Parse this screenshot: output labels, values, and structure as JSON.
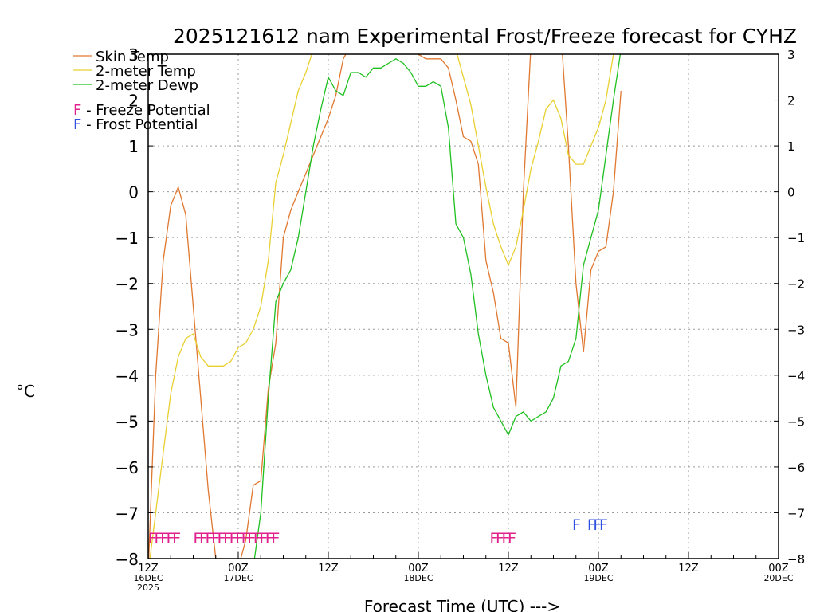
{
  "chart_data": {
    "type": "line",
    "title": "2025121612 nam Experimental Frost/Freeze forecast for CYHZ",
    "xlabel": "Forecast Time (UTC) --->",
    "ylabel": "°C",
    "ylim": [
      -8,
      3
    ],
    "xlim": [
      0,
      84
    ],
    "grid": true,
    "y_ticks": [
      -8,
      -7,
      -6,
      -5,
      -4,
      -3,
      -2,
      -1,
      0,
      1,
      2,
      3
    ],
    "y_tick_labels": [
      "−8",
      "−7",
      "−6",
      "−5",
      "−4",
      "−3",
      "−2",
      "−1",
      "0",
      "1",
      "2",
      "3"
    ],
    "x_ticks": [
      {
        "hour": 0,
        "lines": [
          "12Z",
          "16DEC",
          "2025"
        ]
      },
      {
        "hour": 12,
        "lines": [
          "00Z",
          "17DEC"
        ]
      },
      {
        "hour": 24,
        "lines": [
          "12Z"
        ]
      },
      {
        "hour": 36,
        "lines": [
          "00Z",
          "18DEC"
        ]
      },
      {
        "hour": 48,
        "lines": [
          "12Z"
        ]
      },
      {
        "hour": 60,
        "lines": [
          "00Z",
          "19DEC"
        ]
      },
      {
        "hour": 72,
        "lines": [
          "12Z"
        ]
      },
      {
        "hour": 84,
        "lines": [
          "00Z",
          "20DEC"
        ]
      }
    ],
    "legend": {
      "position": "top-left",
      "series": [
        {
          "label": "Skin Temp",
          "color": "#e07830"
        },
        {
          "label": "2-meter Temp",
          "color": "#e8d030"
        },
        {
          "label": "2-meter Dewp",
          "color": "#20c020"
        }
      ],
      "markers": [
        {
          "symbol": "F",
          "label": " - Freeze Potential",
          "color": "#e0208c"
        },
        {
          "symbol": "F",
          "label": " - Frost Potential",
          "color": "#3050e0"
        }
      ]
    },
    "series": [
      {
        "name": "Skin Temp",
        "color": "#e07830",
        "x": [
          0,
          1,
          2,
          3,
          4,
          5,
          6,
          7,
          8,
          9,
          10,
          11,
          12,
          13,
          14,
          15,
          16,
          17,
          18,
          19,
          20,
          21,
          22,
          23,
          24,
          25,
          26,
          27,
          28,
          29,
          30,
          31,
          32,
          33,
          34,
          35,
          36,
          37,
          38,
          39,
          40,
          41,
          42,
          43,
          44,
          45,
          46,
          47,
          48,
          49,
          50,
          51,
          52,
          53,
          54,
          55,
          56,
          57,
          58,
          59,
          60,
          61,
          62,
          63
        ],
        "y": [
          -8.3,
          -4.0,
          -1.5,
          -0.3,
          0.1,
          -0.5,
          -2.5,
          -4.5,
          -6.5,
          -8.0,
          -8.0,
          -8.1,
          -8.2,
          -7.6,
          -6.4,
          -6.3,
          -4.3,
          -3.3,
          -1.0,
          -0.4,
          0.0,
          0.4,
          0.8,
          1.2,
          1.6,
          2.1,
          2.9,
          3.2,
          3.3,
          3.4,
          3.4,
          3.4,
          3.4,
          3.4,
          3.4,
          3.3,
          3.0,
          2.9,
          2.9,
          2.9,
          2.7,
          2.0,
          1.2,
          1.1,
          0.6,
          -1.5,
          -2.2,
          -3.2,
          -3.3,
          -4.7,
          0.0,
          3.2,
          3.4,
          3.5,
          3.5,
          3.5,
          1.0,
          -2.0,
          -3.5,
          -1.7,
          -1.3,
          -1.2,
          0.0,
          2.2
        ]
      },
      {
        "name": "2-meter Temp",
        "color": "#e8d030",
        "x": [
          0,
          1,
          2,
          3,
          4,
          5,
          6,
          7,
          8,
          9,
          10,
          11,
          12,
          13,
          14,
          15,
          16,
          17,
          18,
          19,
          20,
          21,
          22,
          23,
          24,
          25,
          26,
          27,
          28,
          29,
          30,
          31,
          32,
          33,
          34,
          35,
          36,
          37,
          38,
          39,
          40,
          41,
          42,
          43,
          44,
          45,
          46,
          47,
          48,
          49,
          50,
          51,
          52,
          53,
          54,
          55,
          56,
          57,
          58,
          59,
          60,
          61,
          62,
          63
        ],
        "y": [
          -8.3,
          -7.0,
          -5.7,
          -4.4,
          -3.6,
          -3.2,
          -3.1,
          -3.6,
          -3.8,
          -3.8,
          -3.8,
          -3.7,
          -3.4,
          -3.3,
          -3.0,
          -2.5,
          -1.5,
          0.2,
          0.8,
          1.5,
          2.2,
          2.6,
          3.1,
          3.2,
          3.3,
          3.4,
          3.4,
          3.4,
          3.4,
          3.4,
          3.4,
          3.4,
          3.4,
          3.4,
          3.4,
          3.4,
          3.4,
          3.4,
          3.4,
          3.3,
          3.2,
          3.1,
          2.5,
          1.9,
          1.0,
          0.1,
          -0.7,
          -1.2,
          -1.6,
          -1.2,
          -0.4,
          0.5,
          1.1,
          1.8,
          2.0,
          1.6,
          0.8,
          0.6,
          0.6,
          1.0,
          1.4,
          2.0,
          3.0,
          3.3
        ]
      },
      {
        "name": "2-meter Dewp",
        "color": "#20c020",
        "x": [
          0,
          1,
          2,
          3,
          4,
          5,
          6,
          7,
          8,
          9,
          10,
          11,
          12,
          13,
          14,
          15,
          16,
          17,
          18,
          19,
          20,
          21,
          22,
          23,
          24,
          25,
          26,
          27,
          28,
          29,
          30,
          31,
          32,
          33,
          34,
          35,
          36,
          37,
          38,
          39,
          40,
          41,
          42,
          43,
          44,
          45,
          46,
          47,
          48,
          49,
          50,
          51,
          52,
          53,
          54,
          55,
          56,
          57,
          58,
          59,
          60,
          61,
          62,
          63
        ],
        "y": [
          -8.5,
          -8.5,
          -8.5,
          -8.5,
          -8.5,
          -8.5,
          -8.5,
          -8.5,
          -8.5,
          -8.5,
          -8.5,
          -8.5,
          -8.5,
          -8.5,
          -8.2,
          -7.0,
          -4.5,
          -2.4,
          -2.0,
          -1.7,
          -1.0,
          0.0,
          1.0,
          1.8,
          2.5,
          2.2,
          2.1,
          2.6,
          2.6,
          2.5,
          2.7,
          2.7,
          2.8,
          2.9,
          2.8,
          2.6,
          2.3,
          2.3,
          2.4,
          2.3,
          1.4,
          -0.7,
          -1.0,
          -1.8,
          -3.1,
          -4.0,
          -4.7,
          -5.0,
          -5.3,
          -4.9,
          -4.8,
          -5.0,
          -4.9,
          -4.8,
          -4.5,
          -3.8,
          -3.7,
          -3.2,
          -1.6,
          -1.0,
          -0.4,
          0.8,
          2.0,
          3.1
        ]
      }
    ],
    "markers": [
      {
        "symbol": "F",
        "kind": "freeze",
        "color": "#e0208c",
        "value": -7.5,
        "hours": [
          0,
          0.8,
          1.6,
          2.4,
          3.2,
          6,
          6.8,
          7.6,
          8.4,
          9.2,
          10,
          10.8,
          11.6,
          12.4,
          13.2,
          14,
          14.8,
          15.6,
          16.4,
          45.5,
          46.3,
          47.1,
          47.9
        ]
      },
      {
        "symbol": "F",
        "kind": "frost",
        "color": "#3050e0",
        "value": -7.2,
        "hours": [
          56.5,
          58.5,
          59.3,
          60.1
        ]
      }
    ]
  }
}
